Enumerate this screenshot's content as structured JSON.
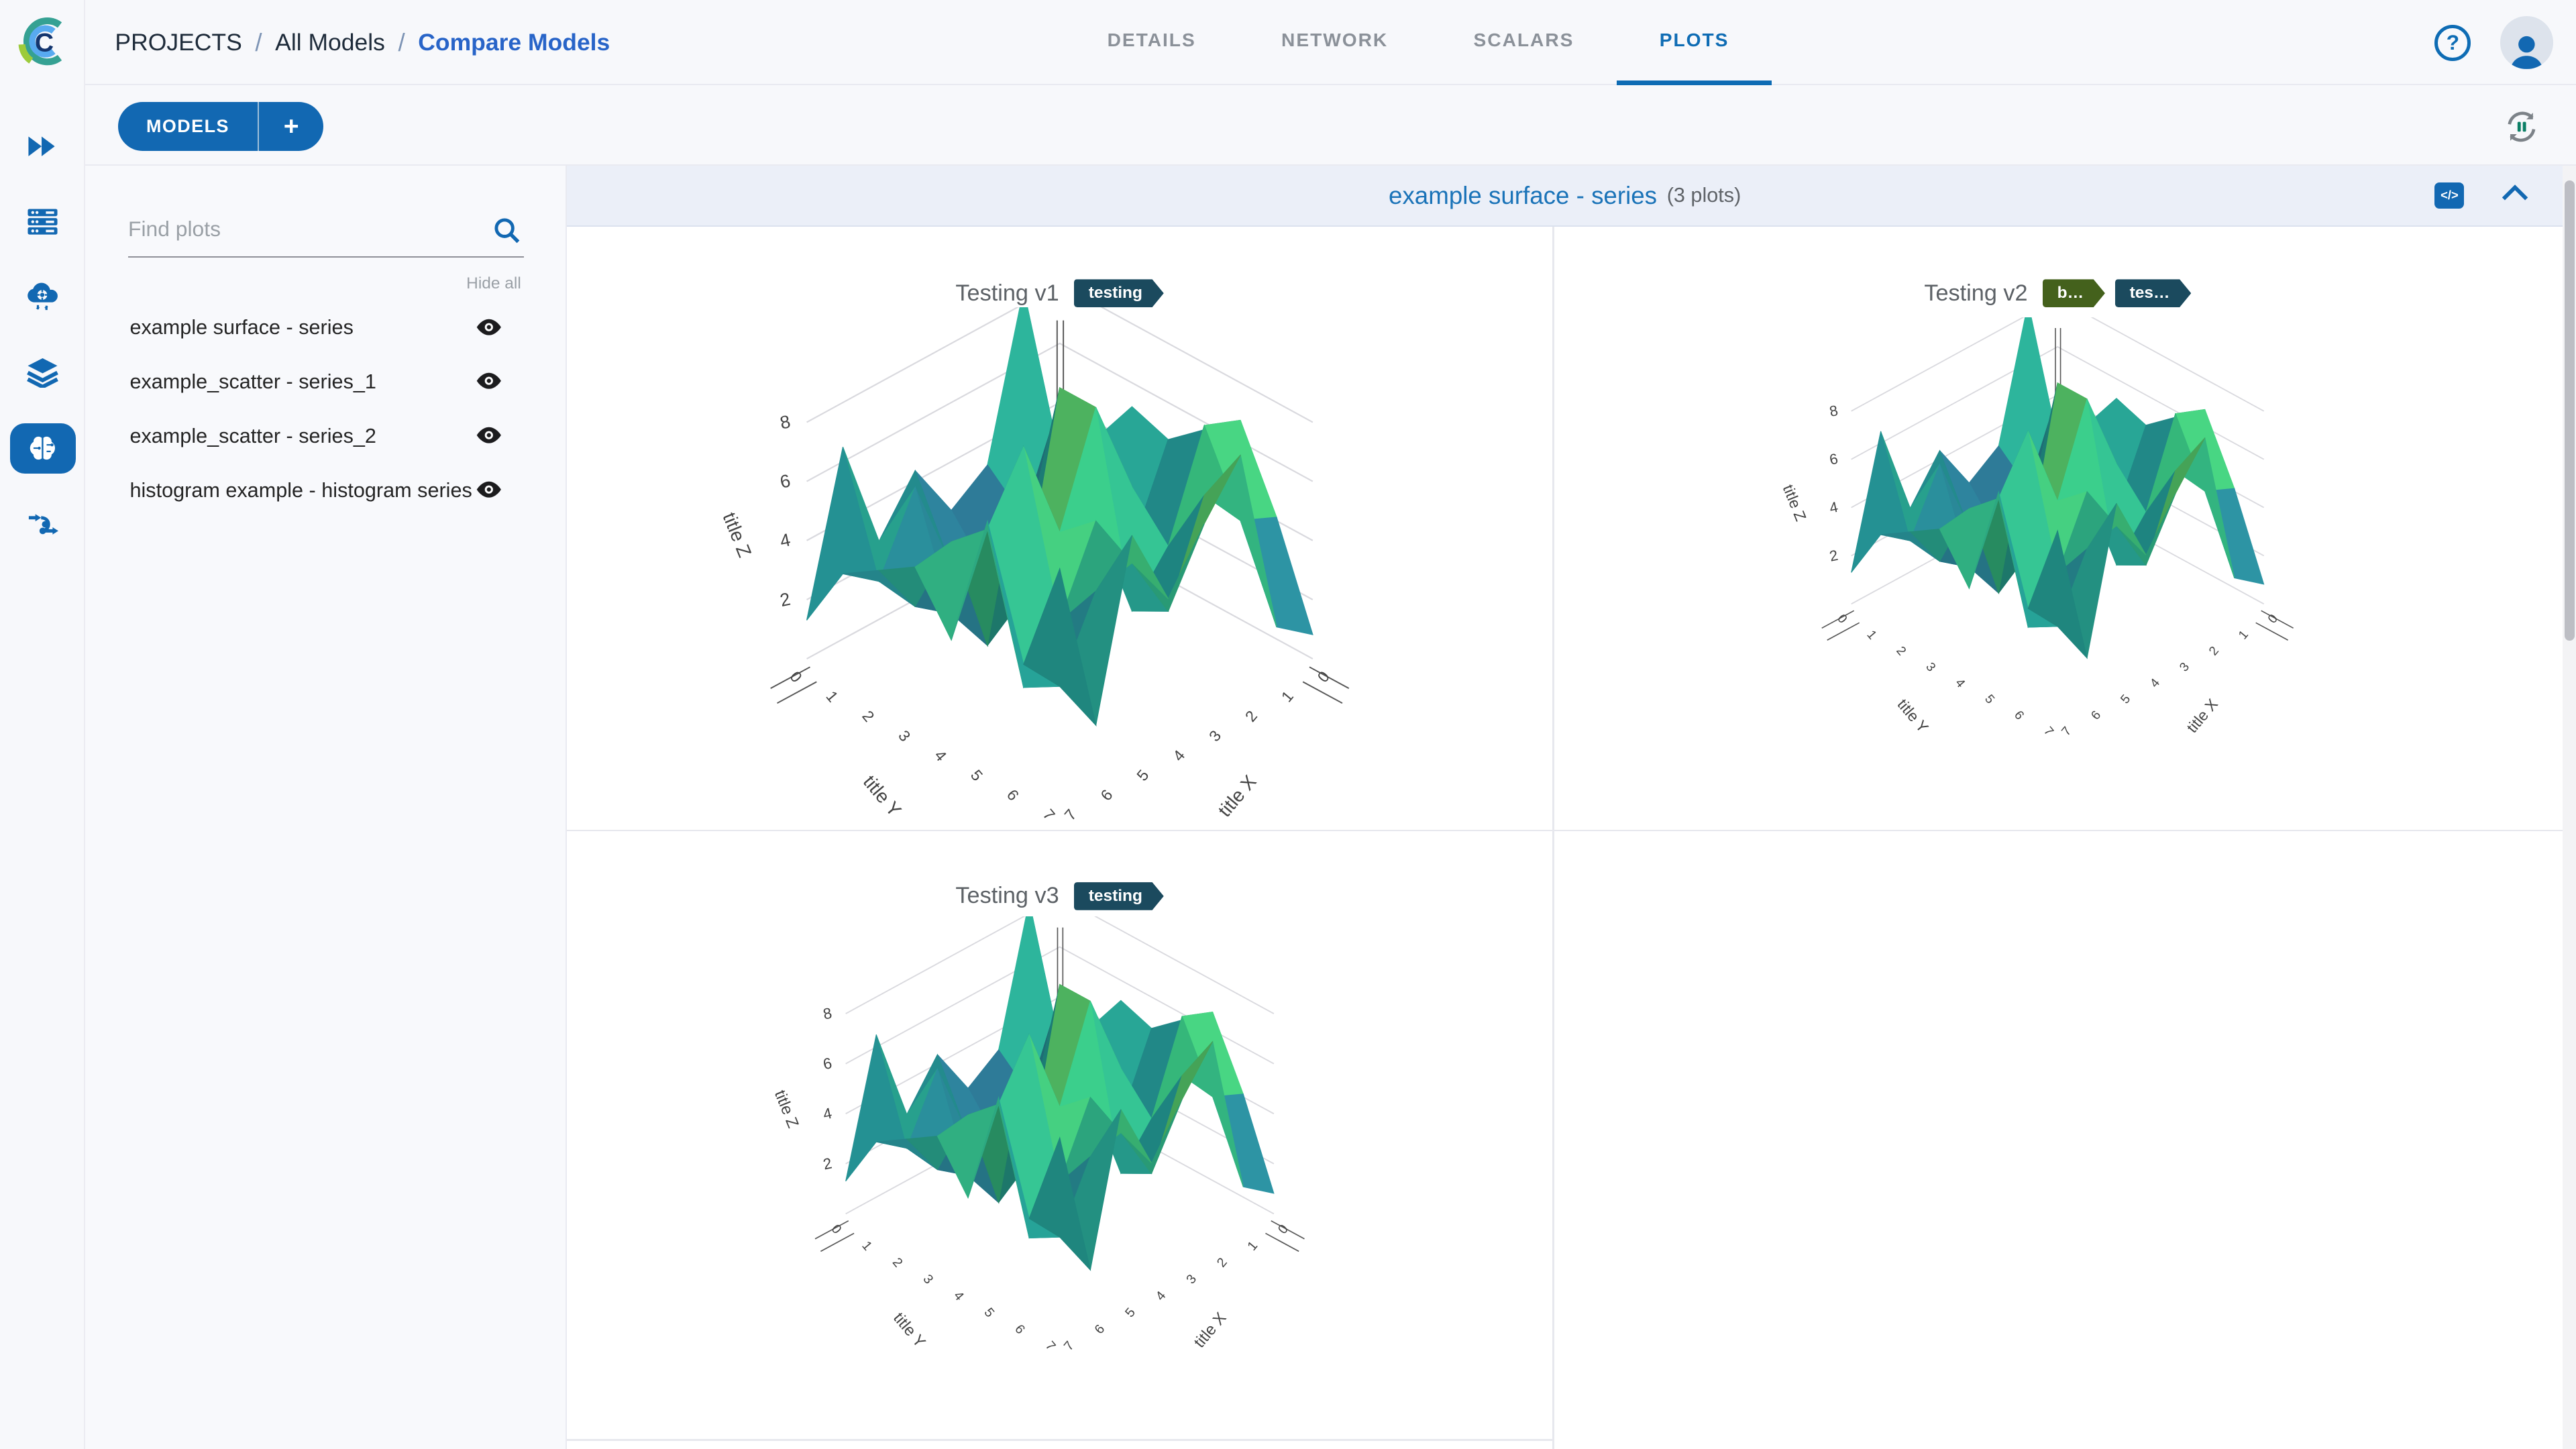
{
  "topbar": {
    "breadcrumb": [
      "PROJECTS",
      "All Models",
      "Compare Models"
    ],
    "separator": "/",
    "tabs": [
      {
        "label": "DETAILS",
        "active": false
      },
      {
        "label": "NETWORK",
        "active": false
      },
      {
        "label": "SCALARS",
        "active": false
      },
      {
        "label": "PLOTS",
        "active": true
      }
    ],
    "help_glyph": "?"
  },
  "toolbar": {
    "models_label": "MODELS",
    "add_label": "+"
  },
  "rail": {
    "items": [
      "projects",
      "queues",
      "workers",
      "datasets",
      "models",
      "pipelines"
    ],
    "active": "models"
  },
  "sidebar": {
    "search_placeholder": "Find plots",
    "hide_all_label": "Hide all",
    "plots": [
      "example surface - series",
      "example_scatter - series_1",
      "example_scatter - series_2",
      "histogram example - histogram series"
    ]
  },
  "section": {
    "title": "example surface - series",
    "count_label": "(3 plots)",
    "code_glyph": "</>"
  },
  "plot_cards": [
    {
      "title": "Testing v1",
      "tags": [
        {
          "label": "testing",
          "color": "#1b4a5e"
        }
      ]
    },
    {
      "title": "Testing v2",
      "tags": [
        {
          "label": "b…",
          "color": "#44611c"
        },
        {
          "label": "tes…",
          "color": "#1b4a5e"
        }
      ]
    },
    {
      "title": "Testing v3",
      "tags": [
        {
          "label": "testing",
          "color": "#1b4a5e"
        }
      ]
    }
  ],
  "chart_data": [
    {
      "type": "surface",
      "title": "Testing v1",
      "xlabel": "title X",
      "ylabel": "title Y",
      "zlabel": "title Z",
      "x_ticks": [
        0,
        1,
        2,
        3,
        4,
        5,
        6,
        7
      ],
      "y_ticks": [
        0,
        1,
        2,
        3,
        4,
        5,
        6,
        7
      ],
      "z_ticks": [
        2,
        4,
        6,
        8
      ],
      "zlim": [
        0,
        8.5
      ],
      "colorscale": "viridis (dark teal valleys → green → yellow peaks)",
      "note": "8×8 spiky random surface; individual z values are not labeled in the screenshot"
    },
    {
      "type": "surface",
      "title": "Testing v2",
      "xlabel": "title X",
      "ylabel": "title Y",
      "zlabel": "title Z",
      "x_ticks": [
        0,
        1,
        2,
        3,
        4,
        5,
        6,
        7
      ],
      "y_ticks": [
        0,
        1,
        2,
        3,
        4,
        5,
        6,
        7
      ],
      "z_ticks": [
        2,
        4,
        6,
        8
      ],
      "zlim": [
        0,
        8.5
      ],
      "colorscale": "viridis (dark teal valleys → green → yellow peaks)",
      "note": "same surface series rendered for model Testing v2"
    },
    {
      "type": "surface",
      "title": "Testing v3",
      "xlabel": "title X",
      "ylabel": "title Y",
      "zlabel": "title Z",
      "x_ticks": [
        0,
        1,
        2,
        3,
        4,
        5,
        6,
        7
      ],
      "y_ticks": [
        0,
        1,
        2,
        3,
        4,
        5,
        6,
        7
      ],
      "z_ticks": [
        2,
        4,
        6,
        8
      ],
      "zlim": [
        0,
        8.5
      ],
      "colorscale": "viridis (dark teal valleys → green → yellow peaks)",
      "note": "same surface series rendered for model Testing v3"
    }
  ],
  "colors": {
    "primary_blue": "#1268b2",
    "active_tab_blue": "#0e6cb4",
    "breadcrumb_link": "#2864c8",
    "section_title_blue": "#1a73b8",
    "tag_navy": "#1b4a5e",
    "tag_green": "#44611c",
    "header_bg": "#ebeff8",
    "panel_bg": "#f7f8fb"
  }
}
